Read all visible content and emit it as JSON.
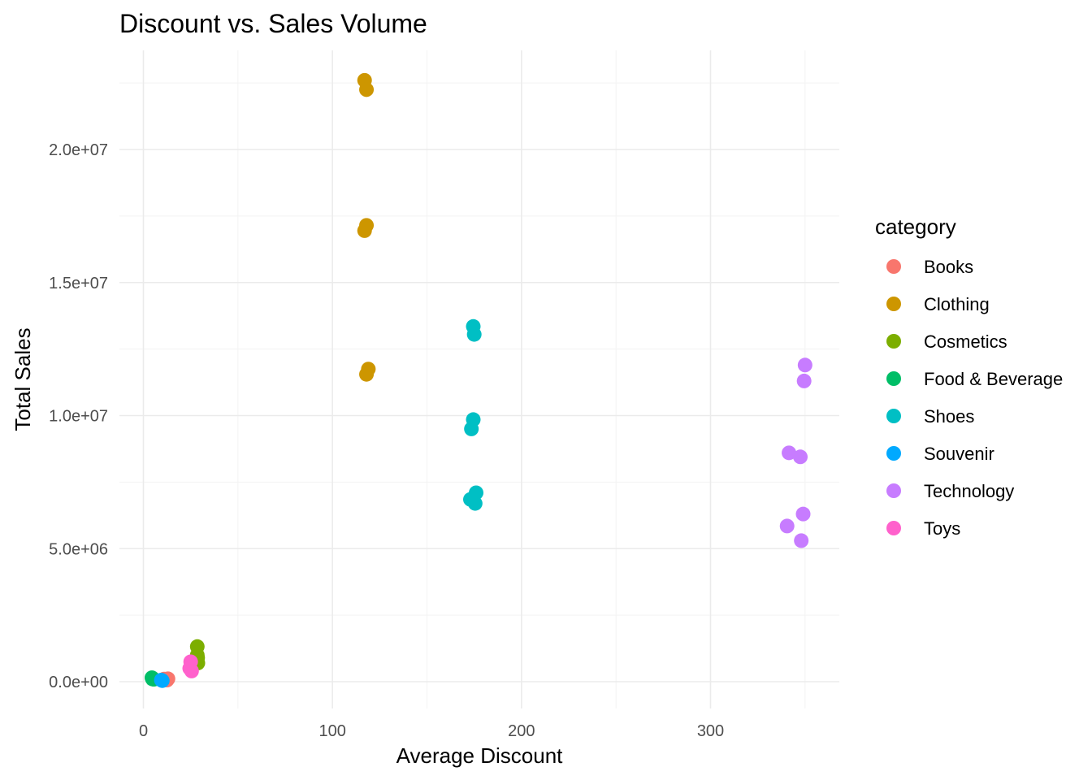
{
  "chart_data": {
    "type": "scatter",
    "title": "Discount vs. Sales Volume",
    "xlabel": "Average Discount",
    "ylabel": "Total Sales",
    "xlim": [
      0,
      365
    ],
    "ylim": [
      -1000000,
      23000000
    ],
    "x_ticks": [
      {
        "value": 0,
        "label": "0"
      },
      {
        "value": 100,
        "label": "100"
      },
      {
        "value": 200,
        "label": "200"
      },
      {
        "value": 300,
        "label": "300"
      }
    ],
    "y_ticks": [
      {
        "value": 0,
        "label": "0.0e+00"
      },
      {
        "value": 5000000,
        "label": "5.0e+06"
      },
      {
        "value": 10000000,
        "label": "1.0e+07"
      },
      {
        "value": 15000000,
        "label": "1.5e+07"
      },
      {
        "value": 20000000,
        "label": "2.0e+07"
      }
    ],
    "x_minor_ticks": [
      50,
      150,
      250,
      350
    ],
    "y_minor_ticks": [
      2500000,
      7500000,
      12500000,
      17500000,
      22500000
    ],
    "grid": true,
    "legend": {
      "title": "category",
      "position": "right"
    },
    "series": [
      {
        "name": "Books",
        "color": "#F8766D",
        "points": [
          {
            "x": 12,
            "y": 80000
          },
          {
            "x": 13,
            "y": 110000
          },
          {
            "x": 12.5,
            "y": 60000
          },
          {
            "x": 11,
            "y": 100000
          }
        ]
      },
      {
        "name": "Clothing",
        "color": "#CD9600",
        "points": [
          {
            "x": 117,
            "y": 22600000
          },
          {
            "x": 118,
            "y": 22250000
          },
          {
            "x": 118,
            "y": 17150000
          },
          {
            "x": 117,
            "y": 16950000
          },
          {
            "x": 119,
            "y": 11750000
          },
          {
            "x": 118,
            "y": 11550000
          }
        ]
      },
      {
        "name": "Cosmetics",
        "color": "#7CAE00",
        "points": [
          {
            "x": 28.5,
            "y": 1320000
          },
          {
            "x": 28.5,
            "y": 1000000
          },
          {
            "x": 28.7,
            "y": 900000
          },
          {
            "x": 28.8,
            "y": 700000
          }
        ]
      },
      {
        "name": "Food & Beverage",
        "color": "#00BE67",
        "points": [
          {
            "x": 4.5,
            "y": 150000
          },
          {
            "x": 5,
            "y": 120000
          },
          {
            "x": 5.5,
            "y": 90000
          },
          {
            "x": 4.8,
            "y": 100000
          }
        ]
      },
      {
        "name": "Shoes",
        "color": "#00BFC4",
        "points": [
          {
            "x": 174.5,
            "y": 13350000
          },
          {
            "x": 175,
            "y": 13050000
          },
          {
            "x": 174.5,
            "y": 9850000
          },
          {
            "x": 173.5,
            "y": 9500000
          },
          {
            "x": 176,
            "y": 7100000
          },
          {
            "x": 173,
            "y": 6850000
          },
          {
            "x": 175.5,
            "y": 6700000
          }
        ]
      },
      {
        "name": "Souvenir",
        "color": "#00A9FF",
        "points": [
          {
            "x": 9.5,
            "y": 60000
          },
          {
            "x": 10,
            "y": 40000
          }
        ]
      },
      {
        "name": "Technology",
        "color": "#C77CFF",
        "points": [
          {
            "x": 350,
            "y": 11900000
          },
          {
            "x": 349.5,
            "y": 11300000
          },
          {
            "x": 341.5,
            "y": 8600000
          },
          {
            "x": 347.5,
            "y": 8450000
          },
          {
            "x": 349,
            "y": 6300000
          },
          {
            "x": 340.5,
            "y": 5850000
          },
          {
            "x": 348,
            "y": 5300000
          }
        ]
      },
      {
        "name": "Toys",
        "color": "#FF61CC",
        "points": [
          {
            "x": 25,
            "y": 750000
          },
          {
            "x": 24.5,
            "y": 500000
          },
          {
            "x": 25.5,
            "y": 400000
          }
        ]
      }
    ]
  }
}
